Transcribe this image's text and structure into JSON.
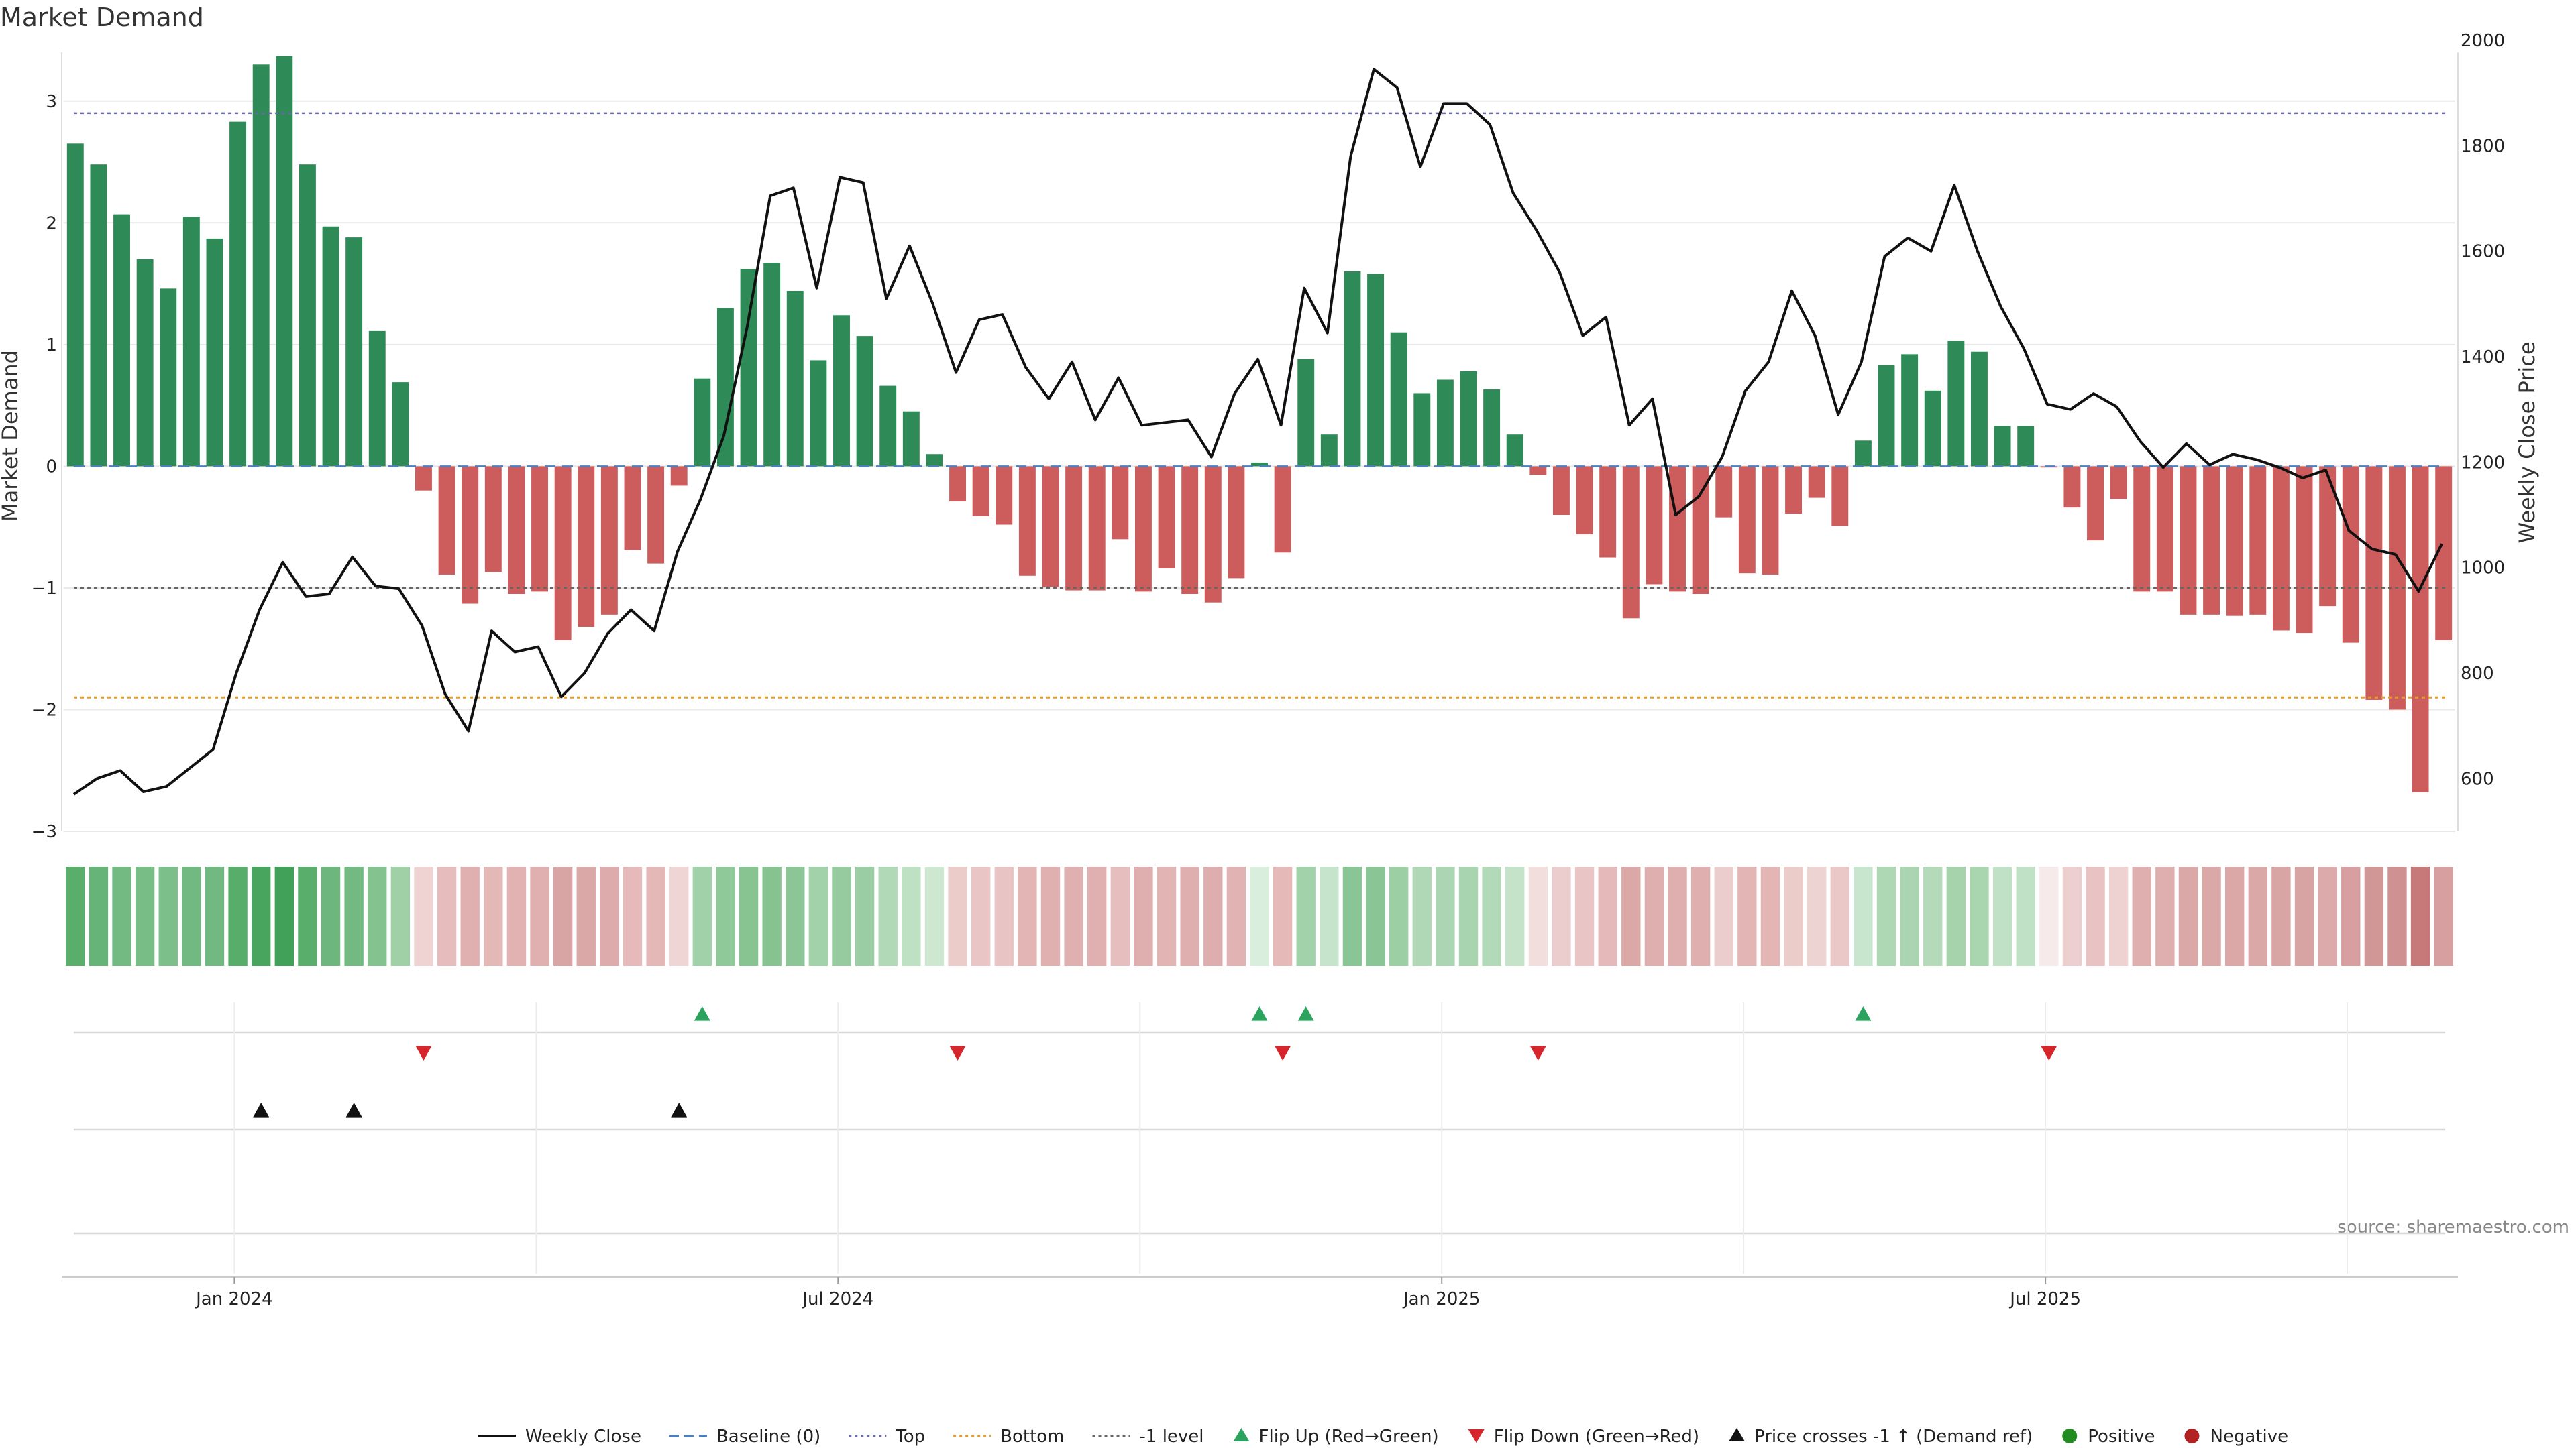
{
  "chart_data": {
    "type": "bar",
    "title": "Market Demand",
    "ylabel_left": "Market Demand",
    "ylabel_right": "Weekly Close Price",
    "source": "source: sharemaestro.com",
    "ylim_left": [
      -3,
      3.5
    ],
    "ylim_right": [
      500,
      2000
    ],
    "yticks_left": [
      {
        "v": 3,
        "label": "3"
      },
      {
        "v": 2,
        "label": "2"
      },
      {
        "v": 1,
        "label": "1"
      },
      {
        "v": 0,
        "label": "0"
      },
      {
        "v": -1,
        "label": "−1"
      },
      {
        "v": -2,
        "label": "−2"
      },
      {
        "v": -3,
        "label": "−3"
      }
    ],
    "yticks_right": [
      {
        "v": 2000,
        "label": "2000"
      },
      {
        "v": 1800,
        "label": "1800"
      },
      {
        "v": 1600,
        "label": "1600"
      },
      {
        "v": 1400,
        "label": "1400"
      },
      {
        "v": 1200,
        "label": "1200"
      },
      {
        "v": 1000,
        "label": "1000"
      },
      {
        "v": 800,
        "label": "800"
      },
      {
        "v": 600,
        "label": "600"
      }
    ],
    "x_ticks": [
      {
        "index": 7,
        "label": "Jan 2024"
      },
      {
        "index": 33,
        "label": "Jul 2024"
      },
      {
        "index": 59,
        "label": "Jan 2025"
      },
      {
        "index": 85,
        "label": "Jul 2025"
      }
    ],
    "levels": {
      "top": 2.9,
      "bottom": -1.9,
      "minus_one": -1,
      "baseline": 0
    },
    "demand": [
      2.65,
      2.48,
      2.07,
      1.7,
      1.46,
      2.05,
      1.87,
      2.83,
      3.3,
      3.37,
      2.48,
      1.97,
      1.88,
      1.11,
      0.69,
      -0.2,
      -0.89,
      -1.13,
      -0.87,
      -1.05,
      -1.03,
      -1.43,
      -1.32,
      -1.22,
      -0.69,
      -0.8,
      -0.16,
      0.72,
      1.3,
      1.62,
      1.67,
      1.44,
      0.87,
      1.24,
      1.07,
      0.66,
      0.45,
      0.1,
      -0.29,
      -0.41,
      -0.48,
      -0.9,
      -0.99,
      -1.02,
      -1.02,
      -0.6,
      -1.03,
      -0.84,
      -1.05,
      -1.12,
      -0.92,
      0.03,
      -0.71,
      0.88,
      0.26,
      1.6,
      1.58,
      1.1,
      0.6,
      0.71,
      0.78,
      0.63,
      0.26,
      -0.07,
      -0.4,
      -0.56,
      -0.75,
      -1.25,
      -0.97,
      -1.03,
      -1.05,
      -0.42,
      -0.88,
      -0.89,
      -0.39,
      -0.26,
      -0.49,
      0.21,
      0.83,
      0.92,
      0.62,
      1.03,
      0.94,
      0.33,
      0.33,
      -0.01,
      -0.34,
      -0.61,
      -0.27,
      -1.03,
      -1.03,
      -1.22,
      -1.22,
      -1.23,
      -1.22,
      -1.35,
      -1.37,
      -1.15,
      -1.45,
      -1.92,
      -2.0,
      -2.68,
      -1.43
    ],
    "price_series": {
      "name": "Weekly Close",
      "values": [
        570,
        600,
        615,
        575,
        585,
        620,
        655,
        800,
        920,
        1010,
        945,
        950,
        1020,
        965,
        960,
        890,
        760,
        690,
        880,
        840,
        850,
        755,
        800,
        875,
        920,
        880,
        1030,
        1130,
        1250,
        1455,
        1705,
        1720,
        1530,
        1740,
        1730,
        1510,
        1610,
        1500,
        1370,
        1470,
        1480,
        1380,
        1320,
        1390,
        1280,
        1360,
        1270,
        1275,
        1280,
        1210,
        1330,
        1395,
        1270,
        1530,
        1445,
        1780,
        1945,
        1910,
        1760,
        1880,
        1880,
        1840,
        1710,
        1640,
        1560,
        1440,
        1475,
        1270,
        1320,
        1100,
        1135,
        1210,
        1335,
        1390,
        1525,
        1440,
        1290,
        1390,
        1590,
        1625,
        1600,
        1725,
        1600,
        1495,
        1415,
        1310,
        1300,
        1330,
        1305,
        1240,
        1190,
        1235,
        1195,
        1215,
        1205,
        1190,
        1170,
        1185,
        1070,
        1035,
        1025,
        955,
        1045
      ]
    },
    "strip_colors": [
      "#5aae6c",
      "#67b478",
      "#73ba82",
      "#79bd86",
      "#7dbf8a",
      "#71b881",
      "#71b881",
      "#58ad6b",
      "#48a55e",
      "#42a159",
      "#5aae6c",
      "#6db67d",
      "#73ba82",
      "#84c38f",
      "#9fd0a6",
      "#efd3d3",
      "#e7bcbc",
      "#e0b0b0",
      "#e5b8b8",
      "#e2b2b2",
      "#e0b0b0",
      "#d9a4a4",
      "#dba8a8",
      "#ddabab",
      "#e6baba",
      "#e5b8b8",
      "#f0d5d5",
      "#a0d1a8",
      "#8fc899",
      "#87c492",
      "#86c391",
      "#8cc697",
      "#a1d2a9",
      "#95cb9f",
      "#9acda3",
      "#b1d9b8",
      "#bee0c3",
      "#cde7d1",
      "#ecccc9",
      "#e9c5c5",
      "#e9c4c4",
      "#e3b5b5",
      "#e0b0b0",
      "#e0afaf",
      "#e0afaf",
      "#e7bebe",
      "#dfaeae",
      "#e2b4b4",
      "#dfaeae",
      "#deadad",
      "#e2b3b3",
      "#daeede",
      "#e6b9b9",
      "#a2d2aa",
      "#c6e4cb",
      "#8ac595",
      "#8ac595",
      "#9ccfa4",
      "#b0d8b6",
      "#acd6b3",
      "#a8d4af",
      "#b2d9b8",
      "#c4e3c9",
      "#f3dede",
      "#eccdcd",
      "#e9c5c5",
      "#e5b9b9",
      "#dba8a8",
      "#dfafaf",
      "#dfaeae",
      "#dfaeae",
      "#eccdcd",
      "#e3b5b5",
      "#e3b5b5",
      "#ecccc9",
      "#eed3d3",
      "#ebc8c8",
      "#c8e5cd",
      "#aed7b4",
      "#abd5b1",
      "#b4dab9",
      "#a6d3ac",
      "#a9d5af",
      "#c1e1c6",
      "#c1e1c6",
      "#f7eaea",
      "#edcfcf",
      "#e9c3c3",
      "#eed2d2",
      "#dfaeae",
      "#dfaeae",
      "#dba8a8",
      "#dba8a8",
      "#dba7a7",
      "#dba8a8",
      "#d9a4a4",
      "#d8a3a3",
      "#dcaaaa",
      "#d79f9f",
      "#d19696",
      "#cf9191",
      "#c77878",
      "#d79f9f"
    ],
    "flip_up_indices": [
      27,
      51,
      53,
      77
    ],
    "flip_down_indices": [
      15,
      38,
      52,
      63,
      85
    ],
    "price_cross_indices": [
      8,
      12,
      26
    ],
    "legend": [
      {
        "label": "Weekly Close",
        "kind": "line-solid",
        "color": "#111111"
      },
      {
        "label": "Baseline (0)",
        "kind": "line-dashed",
        "color": "#4a7fc1"
      },
      {
        "label": "Top",
        "kind": "line-dotted",
        "color": "#6a6aa8"
      },
      {
        "label": "Bottom",
        "kind": "line-dotted",
        "color": "#e39b2c"
      },
      {
        "label": "-1 level",
        "kind": "line-dotted",
        "color": "#666666"
      },
      {
        "label": "Flip Up (Red→Green)",
        "kind": "tri-up",
        "color": "#2ca25f"
      },
      {
        "label": "Flip Down (Green→Red)",
        "kind": "tri-down",
        "color": "#d7262b"
      },
      {
        "label": "Price crosses -1 ↑ (Demand ref)",
        "kind": "tri-up",
        "color": "#111111"
      },
      {
        "label": "Positive",
        "kind": "dot",
        "color": "#228b22"
      },
      {
        "label": "Negative",
        "kind": "dot",
        "color": "#b22222"
      }
    ],
    "colors": {
      "positive_bar": "#2e8b57",
      "negative_bar": "#cd5c5c",
      "price_line": "#111111",
      "grid": "#e8e8e8"
    }
  }
}
